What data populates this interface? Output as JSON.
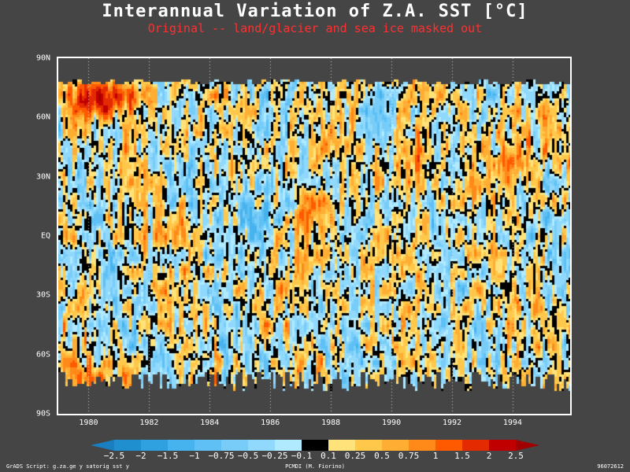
{
  "title": "Interannual Variation of Z.A. SST [°C]",
  "subtitle": "Original -- land/glacier and sea ice masked out",
  "footer": {
    "left": "GrADS Script: g.za.ge y satorig sst y",
    "center": "PCMDI (M. Fiorino)",
    "right": "96072612"
  },
  "chart_data": {
    "type": "heatmap",
    "title": "Interannual Variation of Z.A. SST [°C]",
    "subtitle": "Original -- land/glacier and sea ice masked out",
    "xlabel": "",
    "ylabel": "",
    "x_range": [
      1979.0,
      1995.9
    ],
    "y_range": [
      -90,
      90
    ],
    "x_ticks": [
      {
        "value": 1980,
        "label": "1980"
      },
      {
        "value": 1982,
        "label": "1982"
      },
      {
        "value": 1984,
        "label": "1984"
      },
      {
        "value": 1986,
        "label": "1986"
      },
      {
        "value": 1988,
        "label": "1988"
      },
      {
        "value": 1990,
        "label": "1990"
      },
      {
        "value": 1992,
        "label": "1992"
      },
      {
        "value": 1994,
        "label": "1994"
      }
    ],
    "y_ticks": [
      {
        "value": 90,
        "label": "90N"
      },
      {
        "value": 60,
        "label": "60N"
      },
      {
        "value": 30,
        "label": "30N"
      },
      {
        "value": 0,
        "label": "EQ"
      },
      {
        "value": -30,
        "label": "30S"
      },
      {
        "value": -60,
        "label": "60S"
      },
      {
        "value": -90,
        "label": "90S"
      }
    ],
    "grid": "dotted vertical lines at each year tick",
    "colorbar": {
      "placement": "bottom",
      "levels": [
        "-2.5",
        "-2",
        "-1.5",
        "-1",
        "-0.75",
        "-0.5",
        "-0.25",
        "-0.1",
        "0.1",
        "0.25",
        "0.5",
        "0.75",
        "1",
        "1.5",
        "2",
        "2.5"
      ],
      "colors": [
        "#1f8fd0",
        "#2fa0e0",
        "#46b2ee",
        "#5ec0f4",
        "#78ccf8",
        "#90d8fc",
        "#b0eaff",
        "#000000",
        "#ffe37a",
        "#ffc84a",
        "#ffad33",
        "#ff8a1a",
        "#ff5a00",
        "#e32a00",
        "#c00000"
      ],
      "under_color": "#1a7fc0",
      "over_color": "#a00000"
    },
    "features": [
      {
        "x0": 1979.0,
        "x1": 1981.8,
        "y0": 62,
        "y1": 80,
        "value": 1.8,
        "note": "warm anomaly high latitudes"
      },
      {
        "x0": 1982.5,
        "x1": 1983.6,
        "y0": -10,
        "y1": 10,
        "value": 0.9
      },
      {
        "x0": 1984.5,
        "x1": 1986.5,
        "y0": -15,
        "y1": 30,
        "value": -0.6
      },
      {
        "x0": 1986.8,
        "x1": 1988.3,
        "y0": -15,
        "y1": 25,
        "value": 0.8
      },
      {
        "x0": 1988.5,
        "x1": 1989.6,
        "y0": -10,
        "y1": 10,
        "value": -0.6
      },
      {
        "x0": 1990.2,
        "x1": 1991.4,
        "y0": 20,
        "y1": 55,
        "value": 0.9
      },
      {
        "x0": 1993.2,
        "x1": 1994.8,
        "y0": 25,
        "y1": 55,
        "value": 1.0
      },
      {
        "x0": 1979.0,
        "x1": 1981.8,
        "y0": -78,
        "y1": -60,
        "value": 0.7
      }
    ]
  }
}
